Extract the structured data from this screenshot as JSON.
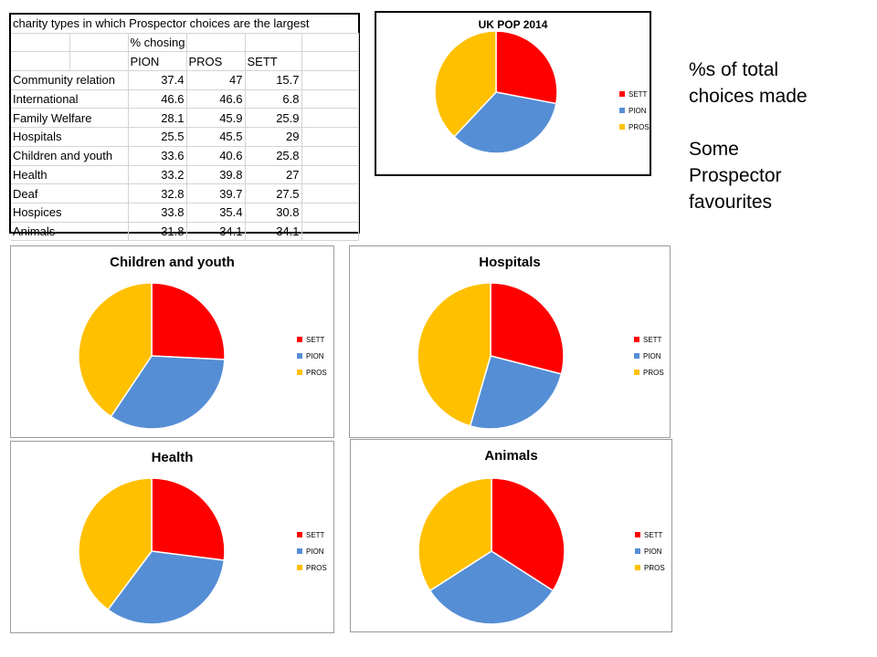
{
  "table": {
    "title": "charity types in which Prospector choices are the largest",
    "subheader": "% chosing",
    "columns": [
      "PION",
      "PROS",
      "SETT"
    ],
    "rows": [
      {
        "label": "Community relation",
        "values": [
          "37.4",
          "47",
          "15.7"
        ]
      },
      {
        "label": "International",
        "values": [
          "46.6",
          "46.6",
          "6.8"
        ]
      },
      {
        "label": "Family Welfare",
        "values": [
          "28.1",
          "45.9",
          "25.9"
        ]
      },
      {
        "label": "Hospitals",
        "values": [
          "25.5",
          "45.5",
          "29"
        ]
      },
      {
        "label": "Children and youth",
        "values": [
          "33.6",
          "40.6",
          "25.8"
        ]
      },
      {
        "label": "Health",
        "values": [
          "33.2",
          "39.8",
          "27"
        ]
      },
      {
        "label": "Deaf",
        "values": [
          "32.8",
          "39.7",
          "27.5"
        ]
      },
      {
        "label": "Hospices",
        "values": [
          "33.8",
          "35.4",
          "30.8"
        ]
      },
      {
        "label": "Animals",
        "values": [
          "31.8",
          "34.1",
          "34.1"
        ]
      }
    ]
  },
  "note": {
    "line1": "%s of total",
    "line2": "choices made",
    "line3": "Some",
    "line4": "Prospector",
    "line5": "favourites"
  },
  "colors": {
    "SETT": "#ff0000",
    "PION": "#558ed5",
    "PROS": "#ffc000"
  },
  "chart_data": [
    {
      "type": "pie",
      "title": "UK POP 2014",
      "categories": [
        "SETT",
        "PION",
        "PROS"
      ],
      "values": [
        28,
        34,
        38
      ],
      "legend": "right"
    },
    {
      "type": "pie",
      "title": "Children and youth",
      "categories": [
        "SETT",
        "PION",
        "PROS"
      ],
      "values": [
        25.8,
        33.6,
        40.6
      ],
      "legend": "right"
    },
    {
      "type": "pie",
      "title": "Hospitals",
      "categories": [
        "SETT",
        "PION",
        "PROS"
      ],
      "values": [
        29,
        25.5,
        45.5
      ],
      "legend": "right"
    },
    {
      "type": "pie",
      "title": "Health",
      "categories": [
        "SETT",
        "PION",
        "PROS"
      ],
      "values": [
        27,
        33.2,
        39.8
      ],
      "legend": "right"
    },
    {
      "type": "pie",
      "title": "Animals",
      "categories": [
        "SETT",
        "PION",
        "PROS"
      ],
      "values": [
        34.1,
        31.8,
        34.1
      ],
      "legend": "right"
    }
  ]
}
